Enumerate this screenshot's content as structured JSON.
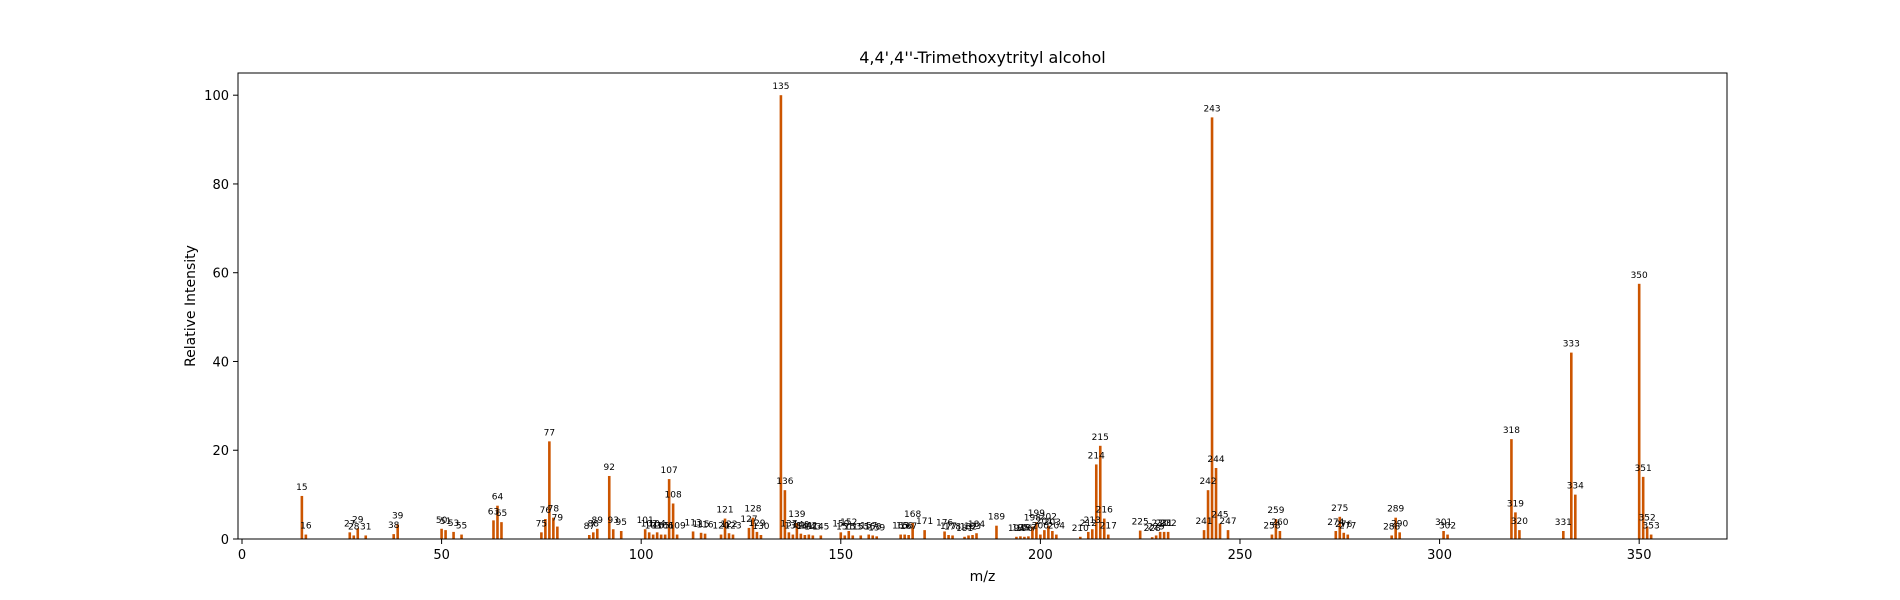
{
  "chart_data": {
    "type": "bar",
    "title": "4,4',4''-Trimethoxytrityl alcohol",
    "xlabel": "m/z",
    "ylabel": "Relative Intensity",
    "xlim": [
      -1,
      372
    ],
    "ylim": [
      0,
      105
    ],
    "xticks": [
      0,
      50,
      100,
      150,
      200,
      250,
      300,
      350
    ],
    "yticks": [
      0,
      20,
      40,
      60,
      80,
      100
    ],
    "bar_color": "#cc5500",
    "grid": false,
    "legend": "none",
    "peaks": [
      {
        "mz": 15,
        "intensity": 9.7
      },
      {
        "mz": 16,
        "intensity": 1.0
      },
      {
        "mz": 27,
        "intensity": 1.5
      },
      {
        "mz": 28,
        "intensity": 0.8
      },
      {
        "mz": 29,
        "intensity": 2.4
      },
      {
        "mz": 31,
        "intensity": 0.8
      },
      {
        "mz": 38,
        "intensity": 1.1
      },
      {
        "mz": 39,
        "intensity": 3.3
      },
      {
        "mz": 50,
        "intensity": 2.3
      },
      {
        "mz": 51,
        "intensity": 2.0
      },
      {
        "mz": 53,
        "intensity": 1.6
      },
      {
        "mz": 55,
        "intensity": 1.0
      },
      {
        "mz": 63,
        "intensity": 4.2
      },
      {
        "mz": 64,
        "intensity": 7.5
      },
      {
        "mz": 65,
        "intensity": 3.8
      },
      {
        "mz": 75,
        "intensity": 1.5
      },
      {
        "mz": 76,
        "intensity": 4.5
      },
      {
        "mz": 77,
        "intensity": 22.0
      },
      {
        "mz": 78,
        "intensity": 4.8
      },
      {
        "mz": 79,
        "intensity": 2.8
      },
      {
        "mz": 87,
        "intensity": 0.9
      },
      {
        "mz": 88,
        "intensity": 1.5
      },
      {
        "mz": 89,
        "intensity": 2.3
      },
      {
        "mz": 92,
        "intensity": 14.2
      },
      {
        "mz": 93,
        "intensity": 2.2
      },
      {
        "mz": 95,
        "intensity": 1.8
      },
      {
        "mz": 101,
        "intensity": 2.2
      },
      {
        "mz": 102,
        "intensity": 1.5
      },
      {
        "mz": 103,
        "intensity": 1.0
      },
      {
        "mz": 104,
        "intensity": 1.5
      },
      {
        "mz": 105,
        "intensity": 1.0
      },
      {
        "mz": 106,
        "intensity": 1.0
      },
      {
        "mz": 107,
        "intensity": 13.5
      },
      {
        "mz": 108,
        "intensity": 8.0
      },
      {
        "mz": 109,
        "intensity": 1.0
      },
      {
        "mz": 113,
        "intensity": 1.7
      },
      {
        "mz": 115,
        "intensity": 1.4
      },
      {
        "mz": 116,
        "intensity": 1.2
      },
      {
        "mz": 120,
        "intensity": 1.0
      },
      {
        "mz": 121,
        "intensity": 4.6
      },
      {
        "mz": 122,
        "intensity": 1.3
      },
      {
        "mz": 123,
        "intensity": 1.0
      },
      {
        "mz": 127,
        "intensity": 2.5
      },
      {
        "mz": 128,
        "intensity": 4.8
      },
      {
        "mz": 129,
        "intensity": 1.6
      },
      {
        "mz": 130,
        "intensity": 0.9
      },
      {
        "mz": 135,
        "intensity": 100.0
      },
      {
        "mz": 136,
        "intensity": 11.0
      },
      {
        "mz": 137,
        "intensity": 1.5
      },
      {
        "mz": 139,
        "intensity": 3.6
      },
      {
        "mz": 138,
        "intensity": 1.0
      },
      {
        "mz": 140,
        "intensity": 1.2
      },
      {
        "mz": 141,
        "intensity": 0.9
      },
      {
        "mz": 142,
        "intensity": 1.0
      },
      {
        "mz": 143,
        "intensity": 0.8
      },
      {
        "mz": 145,
        "intensity": 0.8
      },
      {
        "mz": 150,
        "intensity": 1.5
      },
      {
        "mz": 151,
        "intensity": 0.8
      },
      {
        "mz": 152,
        "intensity": 1.8
      },
      {
        "mz": 153,
        "intensity": 0.8
      },
      {
        "mz": 155,
        "intensity": 0.8
      },
      {
        "mz": 157,
        "intensity": 1.0
      },
      {
        "mz": 158,
        "intensity": 0.8
      },
      {
        "mz": 159,
        "intensity": 0.6
      },
      {
        "mz": 165,
        "intensity": 1.0
      },
      {
        "mz": 166,
        "intensity": 1.0
      },
      {
        "mz": 167,
        "intensity": 0.9
      },
      {
        "mz": 168,
        "intensity": 3.6
      },
      {
        "mz": 171,
        "intensity": 2.0
      },
      {
        "mz": 176,
        "intensity": 1.7
      },
      {
        "mz": 177,
        "intensity": 0.9
      },
      {
        "mz": 178,
        "intensity": 0.8
      },
      {
        "mz": 181,
        "intensity": 0.5
      },
      {
        "mz": 182,
        "intensity": 0.8
      },
      {
        "mz": 183,
        "intensity": 0.9
      },
      {
        "mz": 184,
        "intensity": 1.3
      },
      {
        "mz": 189,
        "intensity": 3.0
      },
      {
        "mz": 194,
        "intensity": 0.5
      },
      {
        "mz": 195,
        "intensity": 0.6
      },
      {
        "mz": 196,
        "intensity": 0.5
      },
      {
        "mz": 197,
        "intensity": 0.6
      },
      {
        "mz": 198,
        "intensity": 2.8
      },
      {
        "mz": 199,
        "intensity": 3.8
      },
      {
        "mz": 200,
        "intensity": 1.0
      },
      {
        "mz": 201,
        "intensity": 2.0
      },
      {
        "mz": 202,
        "intensity": 3.0
      },
      {
        "mz": 203,
        "intensity": 1.8
      },
      {
        "mz": 204,
        "intensity": 1.0
      },
      {
        "mz": 210,
        "intensity": 0.5
      },
      {
        "mz": 212,
        "intensity": 1.6
      },
      {
        "mz": 213,
        "intensity": 2.2
      },
      {
        "mz": 214,
        "intensity": 16.8
      },
      {
        "mz": 215,
        "intensity": 21.0
      },
      {
        "mz": 216,
        "intensity": 4.6
      },
      {
        "mz": 217,
        "intensity": 1.0
      },
      {
        "mz": 225,
        "intensity": 1.9
      },
      {
        "mz": 228,
        "intensity": 0.4
      },
      {
        "mz": 229,
        "intensity": 0.8
      },
      {
        "mz": 230,
        "intensity": 1.6
      },
      {
        "mz": 231,
        "intensity": 1.6
      },
      {
        "mz": 232,
        "intensity": 1.6
      },
      {
        "mz": 241,
        "intensity": 2.0
      },
      {
        "mz": 242,
        "intensity": 11.0
      },
      {
        "mz": 243,
        "intensity": 95.0
      },
      {
        "mz": 244,
        "intensity": 16.0
      },
      {
        "mz": 245,
        "intensity": 3.5
      },
      {
        "mz": 247,
        "intensity": 2.0
      },
      {
        "mz": 258,
        "intensity": 1.0
      },
      {
        "mz": 259,
        "intensity": 4.5
      },
      {
        "mz": 260,
        "intensity": 1.8
      },
      {
        "mz": 274,
        "intensity": 1.8
      },
      {
        "mz": 275,
        "intensity": 5.0
      },
      {
        "mz": 276,
        "intensity": 1.4
      },
      {
        "mz": 277,
        "intensity": 1.0
      },
      {
        "mz": 288,
        "intensity": 0.8
      },
      {
        "mz": 289,
        "intensity": 4.8
      },
      {
        "mz": 290,
        "intensity": 1.5
      },
      {
        "mz": 301,
        "intensity": 1.8
      },
      {
        "mz": 302,
        "intensity": 1.0
      },
      {
        "mz": 318,
        "intensity": 22.5
      },
      {
        "mz": 319,
        "intensity": 6.0
      },
      {
        "mz": 320,
        "intensity": 2.0
      },
      {
        "mz": 331,
        "intensity": 1.8
      },
      {
        "mz": 333,
        "intensity": 42.0
      },
      {
        "mz": 334,
        "intensity": 10.0
      },
      {
        "mz": 350,
        "intensity": 57.5
      },
      {
        "mz": 351,
        "intensity": 14.0
      },
      {
        "mz": 352,
        "intensity": 2.8
      },
      {
        "mz": 353,
        "intensity": 1.0
      }
    ]
  }
}
